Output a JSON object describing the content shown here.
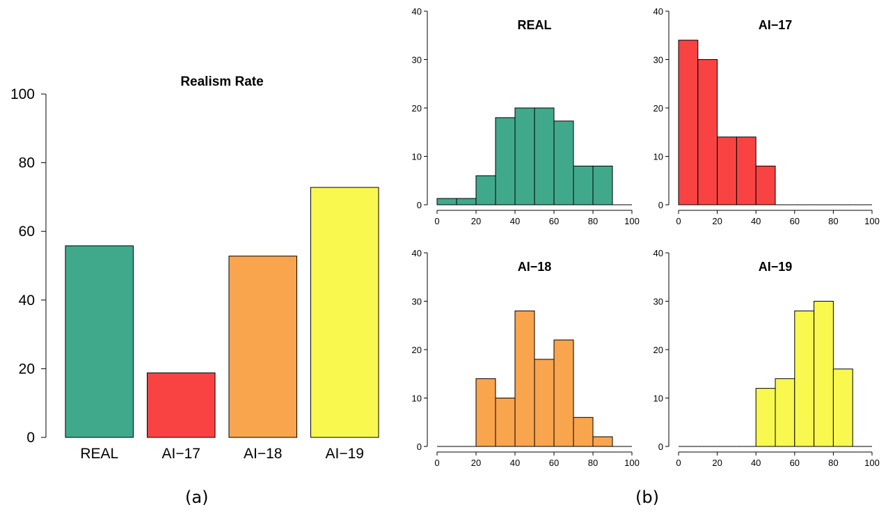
{
  "captions": {
    "a": "(a)",
    "b": "(b)"
  },
  "chart_data": [
    {
      "id": "realism-rate",
      "type": "bar",
      "title": "Realism Rate",
      "xlabel": "",
      "ylabel": "",
      "categories": [
        "REAL",
        "AI−17",
        "AI−18",
        "AI−19"
      ],
      "values": [
        55.8,
        18.8,
        52.8,
        72.8
      ],
      "colors": [
        "#41a98b",
        "#f94343",
        "#f8a54e",
        "#f8f84e"
      ],
      "ylim": [
        0,
        100
      ],
      "yticks": [
        0,
        20,
        40,
        60,
        80,
        100
      ],
      "grid": false,
      "legend": "none"
    },
    {
      "id": "hist-real",
      "type": "bar",
      "subtype": "histogram",
      "title": "REAL",
      "color": "#41a98b",
      "bin_edges": [
        0,
        10,
        20,
        30,
        40,
        50,
        60,
        70,
        80,
        90,
        100
      ],
      "values": [
        1.3,
        1.3,
        6,
        18,
        20,
        20,
        17.3,
        8,
        8,
        0
      ],
      "xlim": [
        0,
        100
      ],
      "ylim": [
        0,
        40
      ],
      "xticks": [
        0,
        20,
        40,
        60,
        80,
        100
      ],
      "yticks": [
        0,
        10,
        20,
        30,
        40
      ]
    },
    {
      "id": "hist-ai17",
      "type": "bar",
      "subtype": "histogram",
      "title": "AI−17",
      "color": "#f94343",
      "bin_edges": [
        0,
        10,
        20,
        30,
        40,
        50,
        60,
        70,
        80,
        90,
        100
      ],
      "values": [
        34,
        30,
        14,
        14,
        8,
        0,
        0,
        0,
        0,
        0
      ],
      "xlim": [
        0,
        100
      ],
      "ylim": [
        0,
        40
      ],
      "xticks": [
        0,
        20,
        40,
        60,
        80,
        100
      ],
      "yticks": [
        0,
        10,
        20,
        30,
        40
      ]
    },
    {
      "id": "hist-ai18",
      "type": "bar",
      "subtype": "histogram",
      "title": "AI−18",
      "color": "#f8a54e",
      "bin_edges": [
        0,
        10,
        20,
        30,
        40,
        50,
        60,
        70,
        80,
        90,
        100
      ],
      "values": [
        0,
        0,
        14,
        10,
        28,
        18,
        22,
        6,
        2,
        0
      ],
      "xlim": [
        0,
        100
      ],
      "ylim": [
        0,
        40
      ],
      "xticks": [
        0,
        20,
        40,
        60,
        80,
        100
      ],
      "yticks": [
        0,
        10,
        20,
        30,
        40
      ]
    },
    {
      "id": "hist-ai19",
      "type": "bar",
      "subtype": "histogram",
      "title": "AI−19",
      "color": "#f8f84e",
      "bin_edges": [
        0,
        10,
        20,
        30,
        40,
        50,
        60,
        70,
        80,
        90,
        100
      ],
      "values": [
        0,
        0,
        0,
        0,
        12,
        14,
        28,
        30,
        16,
        0
      ],
      "xlim": [
        0,
        100
      ],
      "ylim": [
        0,
        40
      ],
      "xticks": [
        0,
        20,
        40,
        60,
        80,
        100
      ],
      "yticks": [
        0,
        10,
        20,
        30,
        40
      ]
    }
  ]
}
